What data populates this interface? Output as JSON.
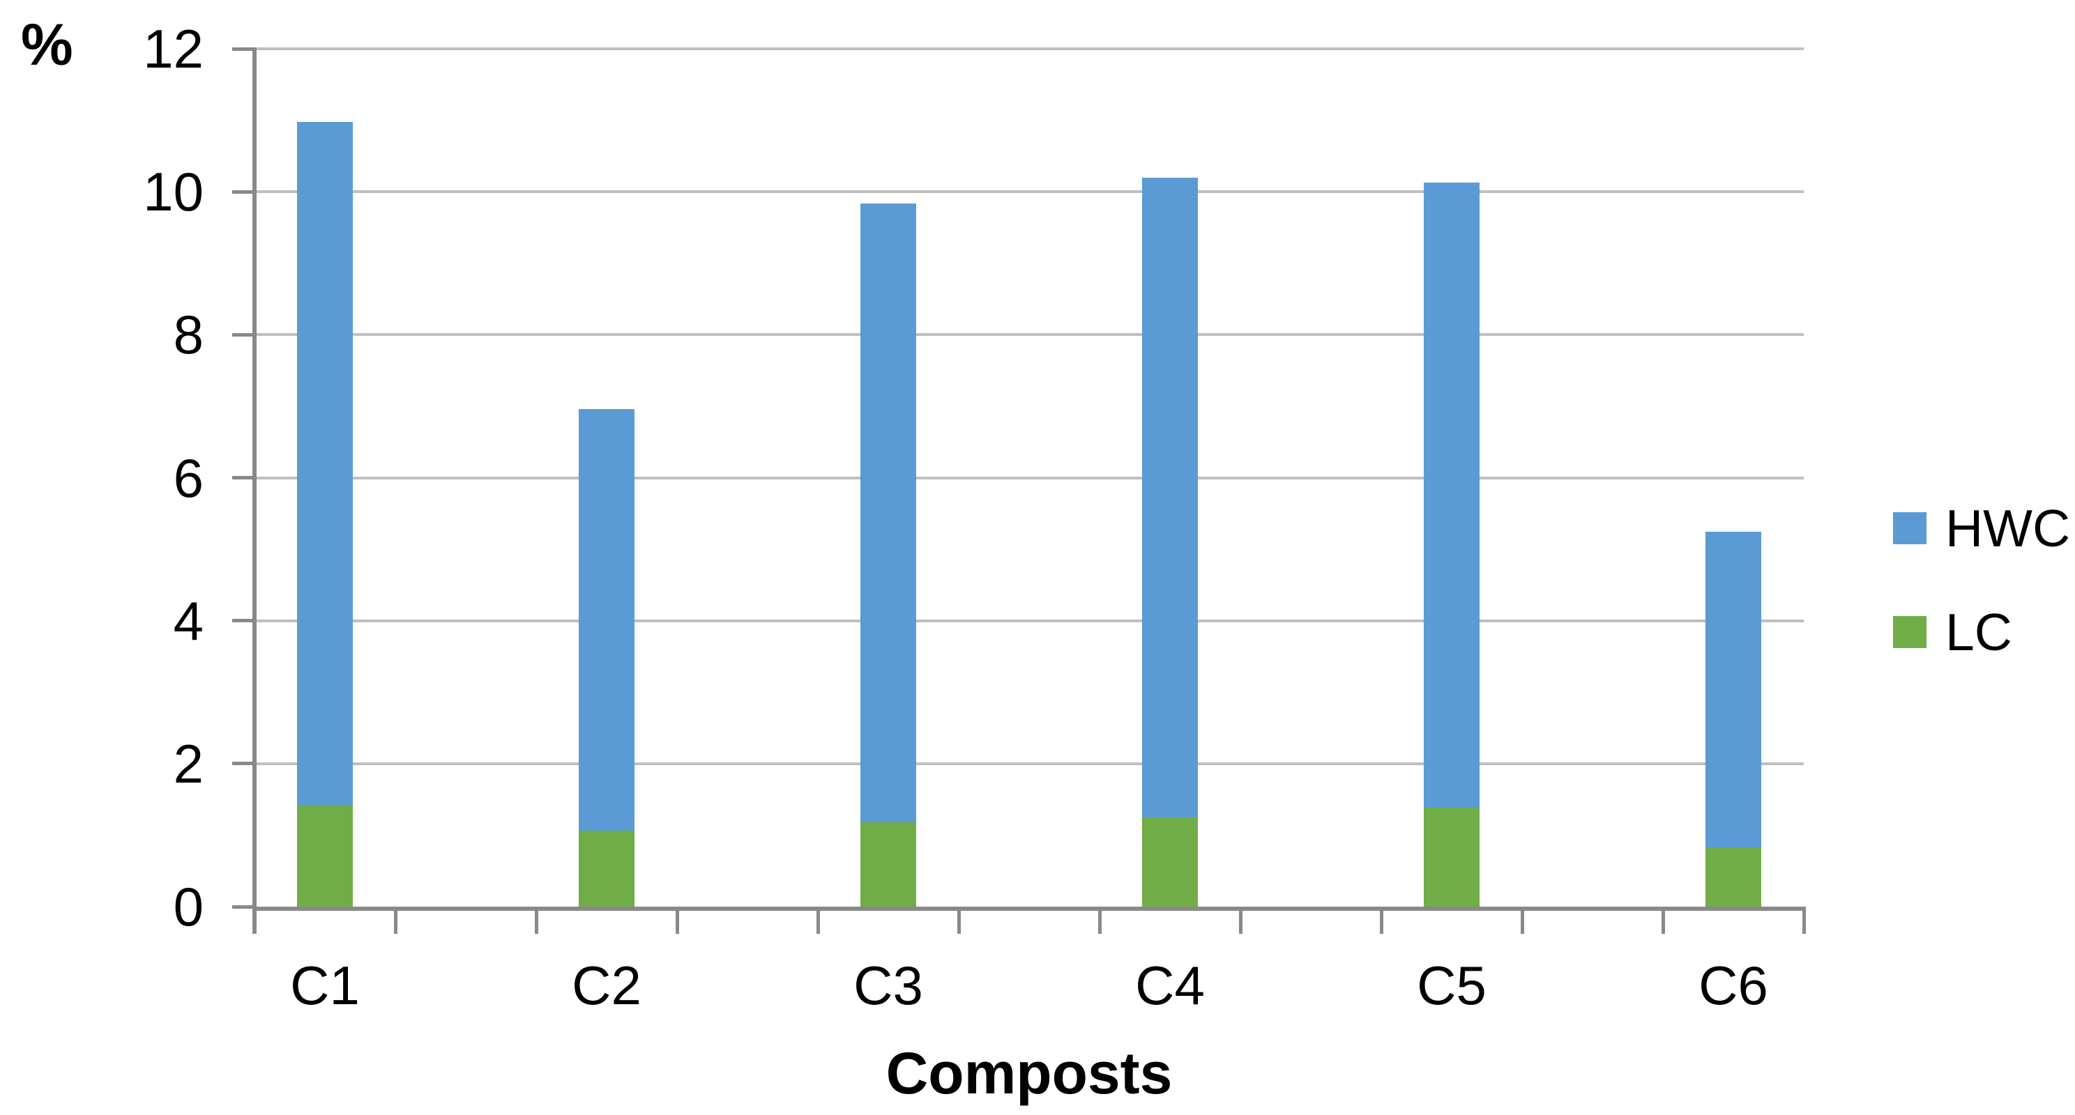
{
  "chart_data": {
    "type": "bar",
    "stacked": true,
    "title": "",
    "xlabel": "Composts",
    "ylabel": "%",
    "categories": [
      "C1",
      "C2",
      "C3",
      "C4",
      "C5",
      "C6"
    ],
    "series": [
      {
        "name": "LC",
        "color": "#70AD47",
        "values": [
          1.42,
          1.06,
          1.18,
          1.25,
          1.38,
          0.83
        ]
      },
      {
        "name": "HWC",
        "color": "#5B9BD5",
        "values": [
          9.56,
          5.9,
          8.66,
          8.95,
          8.75,
          4.41
        ]
      }
    ],
    "stacked_totals": [
      10.98,
      6.96,
      9.84,
      10.2,
      10.13,
      5.24
    ],
    "ylim": [
      0,
      12
    ],
    "yticks": [
      0,
      2,
      4,
      6,
      8,
      10,
      12
    ],
    "grid": true,
    "legend_position": "right"
  },
  "legend": {
    "items": [
      {
        "label": "HWC",
        "color": "#5B9BD5"
      },
      {
        "label": "LC",
        "color": "#70AD47"
      }
    ]
  },
  "colors": {
    "grid": "#BFBFBF",
    "axis": "#898989",
    "text": "#000000",
    "background": "#FFFFFF"
  }
}
